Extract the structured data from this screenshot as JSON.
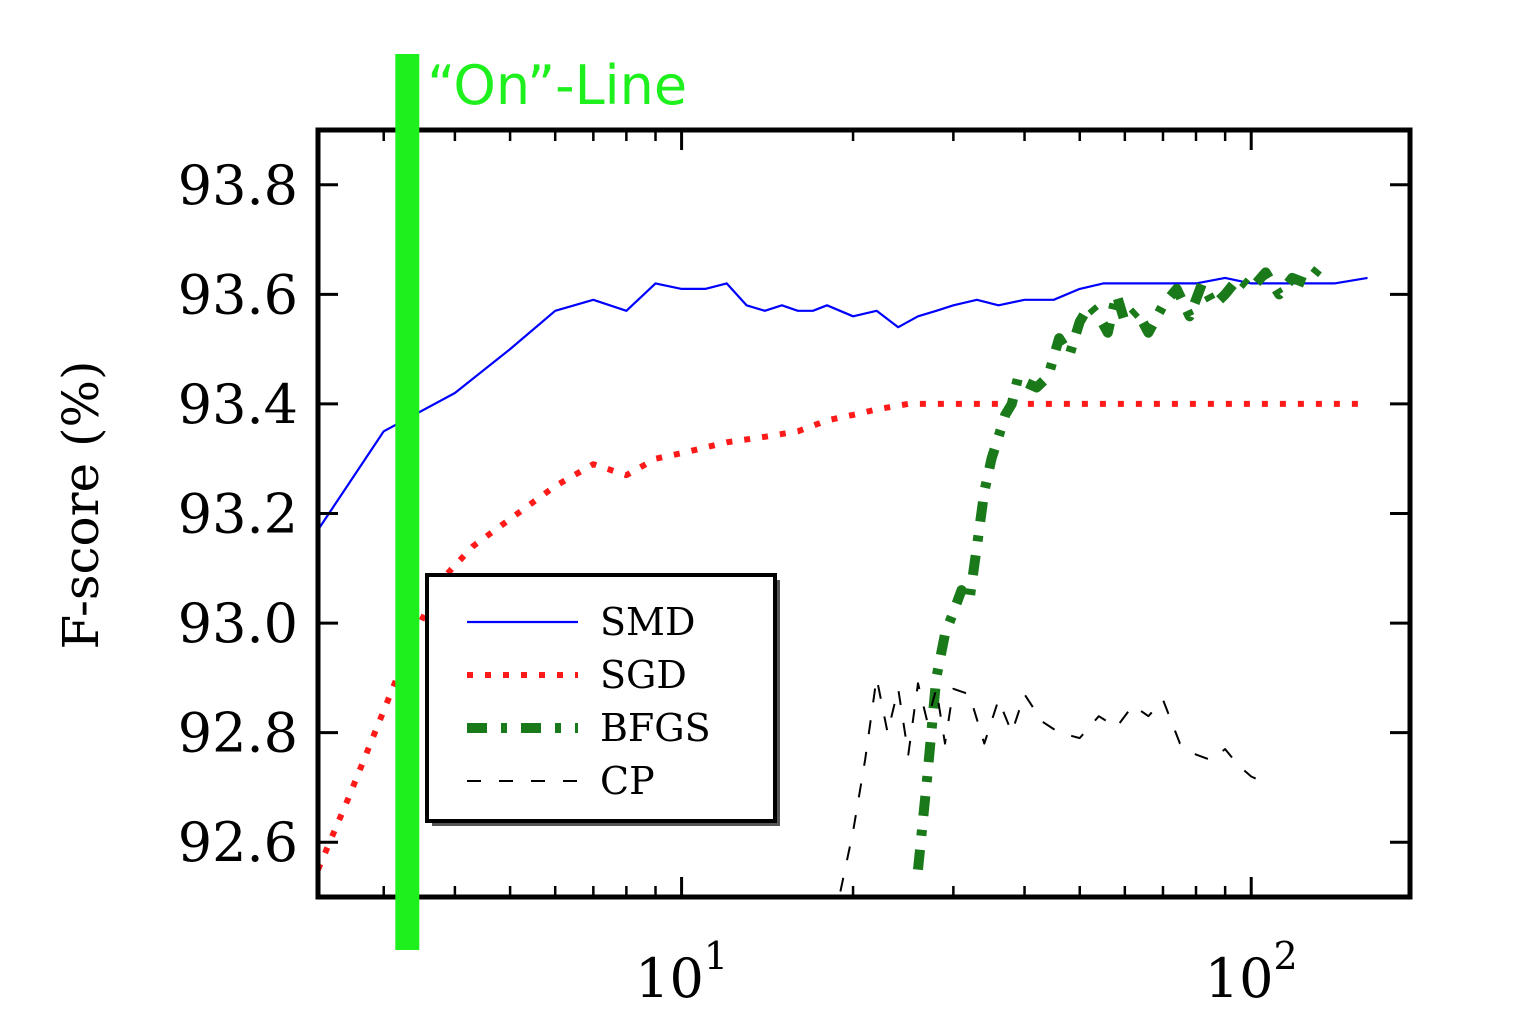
{
  "chart_data": {
    "type": "line",
    "xscale": "log",
    "xlim": [
      2.3,
      190
    ],
    "ylim": [
      92.5,
      93.9
    ],
    "ylabel": "F-score (%)",
    "xlabel": "",
    "x_ticks": [
      10,
      100
    ],
    "x_tick_labels": [
      {
        "base": "10",
        "exp": "1"
      },
      {
        "base": "10",
        "exp": "2"
      }
    ],
    "y_ticks": [
      "92.6",
      "92.8",
      "93.0",
      "93.2",
      "93.4",
      "93.6",
      "93.8"
    ],
    "legend": {
      "position": "lower-left",
      "entries": [
        "SMD",
        "SGD",
        "BFGS",
        "CP"
      ]
    },
    "annotation": {
      "text": "“On”-Line",
      "x": 3.3
    },
    "series": [
      {
        "name": "SMD",
        "color": "#0000ff",
        "style": "solid",
        "x": [
          2.3,
          3.0,
          4.0,
          5.0,
          6.0,
          7.0,
          8.0,
          9.0,
          10.0,
          11.0,
          12.0,
          13.0,
          14.0,
          15.0,
          16.0,
          17.0,
          18.0,
          20.0,
          22.0,
          24.0,
          26.0,
          28.0,
          30.0,
          33.0,
          36.0,
          40.0,
          45.0,
          50.0,
          55.0,
          60.0,
          70.0,
          80.0,
          90.0,
          100.0,
          120.0,
          140.0,
          160.0
        ],
        "y": [
          93.17,
          93.35,
          93.42,
          93.5,
          93.57,
          93.59,
          93.57,
          93.62,
          93.61,
          93.61,
          93.62,
          93.58,
          93.57,
          93.58,
          93.57,
          93.57,
          93.58,
          93.56,
          93.57,
          93.54,
          93.56,
          93.57,
          93.58,
          93.59,
          93.58,
          93.59,
          93.59,
          93.61,
          93.62,
          93.62,
          93.62,
          93.62,
          93.63,
          93.62,
          93.62,
          93.62,
          93.63
        ]
      },
      {
        "name": "SGD",
        "color": "#ff1a1a",
        "style": "dotted",
        "x": [
          2.3,
          2.6,
          3.0,
          3.4,
          3.8,
          4.3,
          5.0,
          6.0,
          7.0,
          8.0,
          9.0,
          10.0,
          12.0,
          14.0,
          16.0,
          18.0,
          20.0,
          22.0,
          25.0,
          30.0,
          40.0,
          60.0,
          100.0,
          160.0
        ],
        "y": [
          92.55,
          92.68,
          92.84,
          92.98,
          93.08,
          93.14,
          93.19,
          93.25,
          93.29,
          93.27,
          93.3,
          93.31,
          93.33,
          93.34,
          93.35,
          93.37,
          93.38,
          93.39,
          93.4,
          93.4,
          93.4,
          93.4,
          93.4,
          93.4
        ]
      },
      {
        "name": "BFGS",
        "color": "#1a7a1a",
        "style": "dash-dot",
        "x": [
          26.0,
          27.0,
          28.0,
          29.0,
          30.0,
          31.0,
          32.0,
          33.0,
          34.0,
          35.0,
          36.0,
          37.0,
          38.0,
          39.0,
          40.0,
          42.0,
          44.0,
          46.0,
          48.0,
          50.0,
          52.0,
          54.0,
          56.0,
          58.0,
          60.0,
          63.0,
          66.0,
          70.0,
          74.0,
          78.0,
          82.0,
          86.0,
          90.0,
          95.0,
          100.0,
          106.0,
          112.0,
          118.0,
          125.0,
          132.0
        ],
        "y": [
          92.55,
          92.72,
          92.9,
          92.98,
          93.02,
          93.06,
          93.04,
          93.14,
          93.24,
          93.3,
          93.34,
          93.38,
          93.4,
          93.45,
          93.44,
          93.43,
          93.45,
          93.52,
          93.49,
          93.55,
          93.58,
          93.56,
          93.53,
          93.6,
          93.55,
          93.57,
          93.53,
          93.58,
          93.61,
          93.56,
          93.62,
          93.58,
          93.6,
          93.63,
          93.61,
          93.64,
          93.6,
          93.63,
          93.62,
          93.65
        ]
      },
      {
        "name": "CP",
        "color": "#000000",
        "style": "dashed",
        "x": [
          19.0,
          20.0,
          21.0,
          22.0,
          23.0,
          24.0,
          25.0,
          26.0,
          27.0,
          28.0,
          29.0,
          30.0,
          32.0,
          34.0,
          36.0,
          38.0,
          40.0,
          43.0,
          46.0,
          50.0,
          54.0,
          58.0,
          62.0,
          66.0,
          70.0,
          75.0,
          80.0,
          85.0,
          90.0,
          95.0,
          100.0,
          105.0
        ],
        "y": [
          92.51,
          92.62,
          92.75,
          92.9,
          92.8,
          92.88,
          92.76,
          92.89,
          92.82,
          92.88,
          92.78,
          92.88,
          92.87,
          92.78,
          92.86,
          92.8,
          92.87,
          92.82,
          92.8,
          92.79,
          92.83,
          92.81,
          92.85,
          92.83,
          92.86,
          92.78,
          92.76,
          92.75,
          92.77,
          92.74,
          92.72,
          92.71
        ]
      }
    ]
  }
}
